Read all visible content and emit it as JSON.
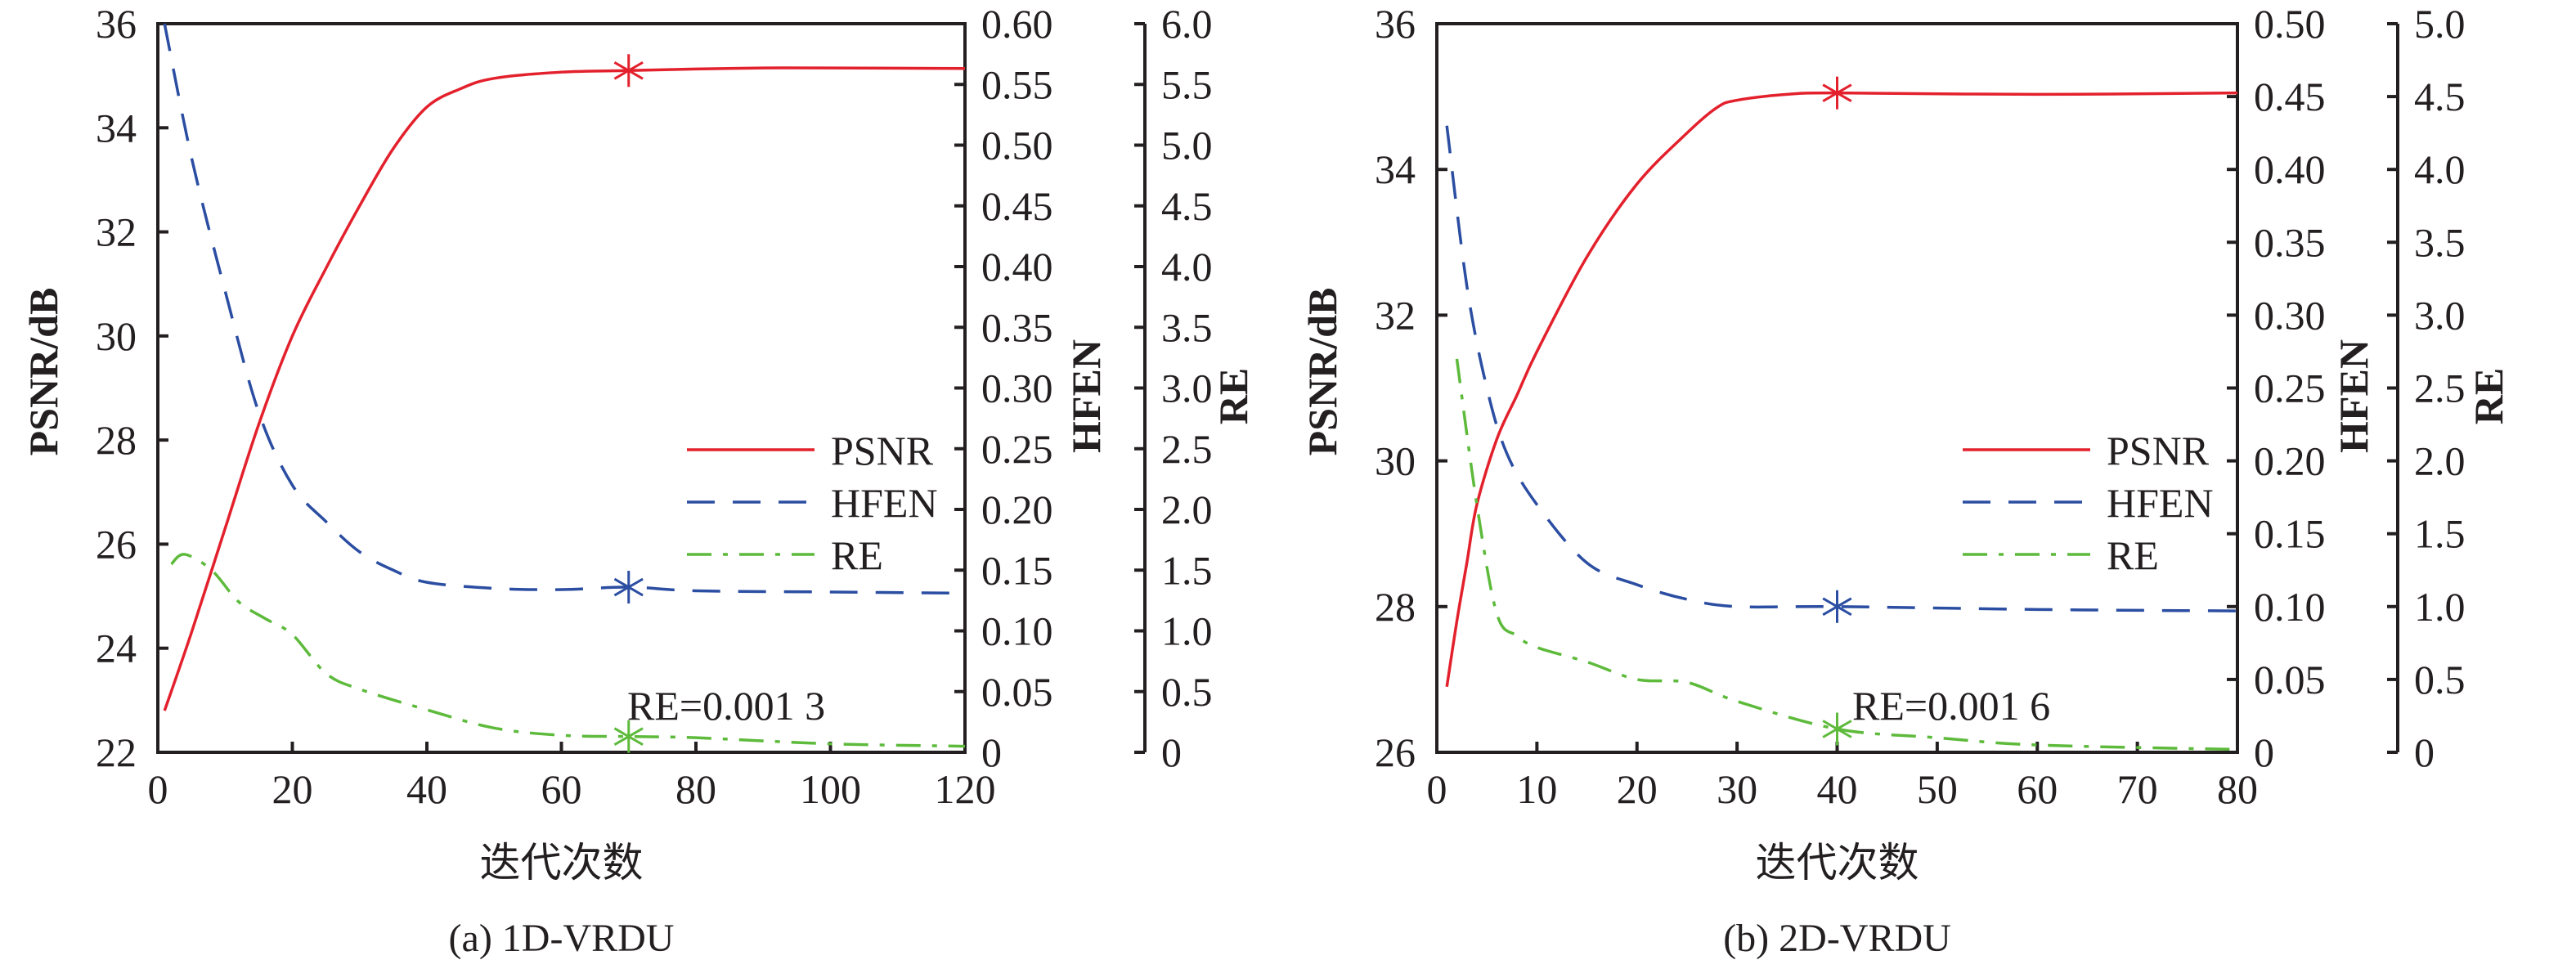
{
  "chart_data": [
    {
      "type": "line",
      "caption": "(a) 1D-VRDU",
      "xlabel": "迭代次数",
      "ylabel": "PSNR/dB",
      "y2label": "HFEN",
      "y3label": "RE",
      "xlim": [
        0,
        120
      ],
      "ylim": [
        22,
        36
      ],
      "y2lim": [
        0,
        0.6
      ],
      "y3lim": [
        0,
        6
      ],
      "xticks": [
        "0",
        "20",
        "40",
        "60",
        "80",
        "100",
        "120"
      ],
      "yticks": [
        "22",
        "24",
        "26",
        "28",
        "30",
        "32",
        "34",
        "36"
      ],
      "y2ticks": [
        "0",
        "0.05",
        "0.10",
        "0.15",
        "0.20",
        "0.25",
        "0.30",
        "0.35",
        "0.40",
        "0.45",
        "0.50",
        "0.55",
        "0.60"
      ],
      "y3ticks": [
        "0",
        "0.5",
        "1.0",
        "1.5",
        "2.0",
        "2.5",
        "3.0",
        "3.5",
        "4.0",
        "4.5",
        "5.0",
        "5.5",
        "6.0"
      ],
      "annotation": "RE=0.001 3",
      "marker_x": 70,
      "legend": [
        "PSNR",
        "HFEN",
        "RE"
      ],
      "legend_position": "center-right",
      "series": [
        {
          "name": "PSNR",
          "axis": "y",
          "color": "#e3212d",
          "style": "solid",
          "x": [
            1,
            5,
            10,
            15,
            20,
            25,
            30,
            35,
            40,
            45,
            50,
            60,
            70,
            80,
            90,
            100,
            120
          ],
          "values": [
            22.8,
            24.3,
            26.3,
            28.3,
            30.0,
            31.3,
            32.5,
            33.6,
            34.4,
            34.75,
            34.95,
            35.07,
            35.1,
            35.13,
            35.15,
            35.15,
            35.14
          ]
        },
        {
          "name": "HFEN",
          "axis": "y2",
          "color": "#2b4ea2",
          "style": "dashed",
          "x": [
            1,
            5,
            10,
            15,
            20,
            25,
            30,
            35,
            40,
            50,
            60,
            70,
            80,
            100,
            120
          ],
          "values": [
            0.6,
            0.49,
            0.38,
            0.28,
            0.22,
            0.19,
            0.165,
            0.15,
            0.14,
            0.135,
            0.134,
            0.136,
            0.133,
            0.132,
            0.131
          ]
        },
        {
          "name": "RE",
          "axis": "y3",
          "color": "#5dba3b",
          "style": "dashdot",
          "x": [
            2,
            4,
            8,
            12,
            16,
            20,
            25,
            30,
            40,
            50,
            60,
            70,
            80,
            100,
            120
          ],
          "values": [
            1.55,
            1.63,
            1.5,
            1.24,
            1.1,
            0.97,
            0.65,
            0.52,
            0.35,
            0.2,
            0.14,
            0.13,
            0.12,
            0.07,
            0.05
          ]
        }
      ]
    },
    {
      "type": "line",
      "caption": "(b) 2D-VRDU",
      "xlabel": "迭代次数",
      "ylabel": "PSNR/dB",
      "y2label": "HFEN",
      "y3label": "RE",
      "xlim": [
        0,
        80
      ],
      "ylim": [
        26,
        36
      ],
      "y2lim": [
        0,
        0.5
      ],
      "y3lim": [
        0,
        5
      ],
      "xticks": [
        "0",
        "10",
        "20",
        "30",
        "40",
        "50",
        "60",
        "70",
        "80"
      ],
      "yticks": [
        "26",
        "28",
        "30",
        "32",
        "34",
        "36"
      ],
      "y2ticks": [
        "0",
        "0.05",
        "0.10",
        "0.15",
        "0.20",
        "0.25",
        "0.30",
        "0.35",
        "0.40",
        "0.45",
        "0.50"
      ],
      "y3ticks": [
        "0",
        "0.5",
        "1.0",
        "1.5",
        "2.0",
        "2.5",
        "3.0",
        "3.5",
        "4.0",
        "4.5",
        "5.0"
      ],
      "annotation": "RE=0.001 6",
      "marker_x": 40,
      "legend": [
        "PSNR",
        "HFEN",
        "RE"
      ],
      "legend_position": "center-right",
      "series": [
        {
          "name": "PSNR",
          "axis": "y",
          "color": "#e3212d",
          "style": "solid",
          "x": [
            1,
            2,
            3,
            4,
            6,
            8,
            10,
            15,
            20,
            25,
            28,
            30,
            35,
            40,
            60,
            80
          ],
          "values": [
            26.9,
            27.8,
            28.6,
            29.4,
            30.3,
            30.9,
            31.5,
            32.8,
            33.8,
            34.5,
            34.85,
            34.95,
            35.03,
            35.05,
            35.03,
            35.05
          ]
        },
        {
          "name": "HFEN",
          "axis": "y2",
          "color": "#2b4ea2",
          "style": "dashed",
          "x": [
            1,
            3,
            5,
            7,
            10,
            15,
            20,
            25,
            30,
            40,
            60,
            80
          ],
          "values": [
            0.43,
            0.32,
            0.25,
            0.205,
            0.17,
            0.13,
            0.115,
            0.105,
            0.1,
            0.1,
            0.098,
            0.097
          ]
        },
        {
          "name": "RE",
          "axis": "y3",
          "color": "#5dba3b",
          "style": "dashdot",
          "x": [
            2,
            4,
            6,
            8,
            10,
            15,
            20,
            25,
            30,
            40,
            50,
            60,
            80
          ],
          "values": [
            2.7,
            1.7,
            0.95,
            0.8,
            0.72,
            0.62,
            0.5,
            0.48,
            0.35,
            0.16,
            0.1,
            0.05,
            0.02
          ]
        }
      ]
    }
  ]
}
